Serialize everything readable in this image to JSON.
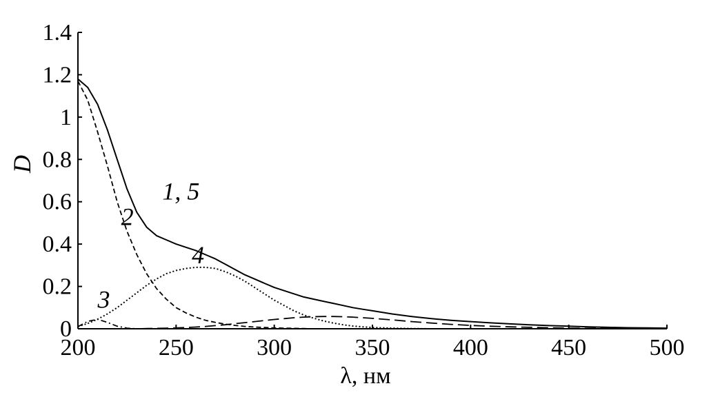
{
  "chart_data": {
    "type": "line",
    "title": "",
    "xlabel": "λ, нм",
    "ylabel": "D",
    "xlim": [
      200,
      500
    ],
    "ylim": [
      0,
      1.4
    ],
    "xticks": [
      200,
      250,
      300,
      350,
      400,
      450,
      500
    ],
    "yticks": [
      0,
      0.2,
      0.4,
      0.6,
      0.8,
      1,
      1.2,
      1.4
    ],
    "xtick_labels": [
      "200",
      "250",
      "300",
      "350",
      "400",
      "450",
      "500"
    ],
    "ytick_labels": [
      "0",
      "0.2",
      "0.4",
      "0.6",
      "0.8",
      "1",
      "1.2",
      "1.4"
    ],
    "grid": false,
    "legend": "none",
    "x": [
      200,
      205,
      210,
      215,
      220,
      225,
      230,
      235,
      240,
      245,
      250,
      255,
      260,
      265,
      270,
      275,
      280,
      285,
      290,
      295,
      300,
      305,
      310,
      315,
      320,
      325,
      330,
      335,
      340,
      345,
      350,
      360,
      370,
      380,
      390,
      400,
      410,
      420,
      430,
      440,
      450,
      460,
      470,
      480,
      490,
      500
    ],
    "series": [
      {
        "name": "1",
        "style": "solid",
        "values": [
          1.18,
          1.14,
          1.06,
          0.94,
          0.8,
          0.66,
          0.55,
          0.48,
          0.44,
          0.42,
          0.4,
          0.385,
          0.37,
          0.35,
          0.33,
          0.305,
          0.28,
          0.255,
          0.235,
          0.215,
          0.195,
          0.18,
          0.165,
          0.15,
          0.14,
          0.13,
          0.12,
          0.11,
          0.1,
          0.092,
          0.085,
          0.07,
          0.058,
          0.048,
          0.04,
          0.034,
          0.028,
          0.023,
          0.019,
          0.015,
          0.012,
          0.009,
          0.007,
          0.005,
          0.004,
          0.003
        ]
      },
      {
        "name": "2",
        "style": "dashed",
        "values": [
          1.17,
          1.08,
          0.93,
          0.77,
          0.6,
          0.46,
          0.35,
          0.26,
          0.19,
          0.14,
          0.1,
          0.075,
          0.055,
          0.04,
          0.03,
          0.022,
          0.016,
          0.011,
          0.008,
          0.006,
          0.004,
          0.003,
          0.002,
          0.001,
          0,
          0,
          0,
          0,
          0,
          0,
          0,
          0,
          0,
          0,
          0,
          0,
          0,
          0,
          0,
          0,
          0,
          0,
          0,
          0,
          0,
          0
        ]
      },
      {
        "name": "3",
        "style": "dash-dot",
        "values": [
          0.01,
          0.035,
          0.045,
          0.03,
          0.012,
          0.003,
          0,
          0,
          0,
          0,
          0,
          0,
          0,
          0,
          0,
          0,
          0,
          0,
          0,
          0,
          0,
          0,
          0,
          0,
          0,
          0,
          0,
          0,
          0,
          0,
          0,
          0,
          0,
          0,
          0,
          0,
          0,
          0,
          0,
          0,
          0,
          0,
          0,
          0,
          0,
          0
        ]
      },
      {
        "name": "4",
        "style": "dotted",
        "values": [
          0.01,
          0.025,
          0.045,
          0.07,
          0.1,
          0.135,
          0.17,
          0.205,
          0.235,
          0.26,
          0.275,
          0.285,
          0.29,
          0.29,
          0.285,
          0.27,
          0.25,
          0.225,
          0.195,
          0.165,
          0.135,
          0.11,
          0.085,
          0.065,
          0.05,
          0.037,
          0.027,
          0.019,
          0.013,
          0.009,
          0.006,
          0.003,
          0.001,
          0,
          0,
          0,
          0,
          0,
          0,
          0,
          0,
          0,
          0,
          0,
          0,
          0
        ]
      },
      {
        "name": "5",
        "style": "long-dashed",
        "values": [
          0,
          0,
          0,
          0,
          0,
          0,
          0,
          0.001,
          0.002,
          0.003,
          0.004,
          0.006,
          0.008,
          0.011,
          0.015,
          0.019,
          0.024,
          0.029,
          0.034,
          0.039,
          0.044,
          0.048,
          0.052,
          0.055,
          0.057,
          0.058,
          0.058,
          0.057,
          0.055,
          0.052,
          0.049,
          0.042,
          0.034,
          0.027,
          0.021,
          0.016,
          0.012,
          0.009,
          0.007,
          0.005,
          0.003,
          0.002,
          0.002,
          0.001,
          0.001,
          0
        ]
      }
    ],
    "annotations": [
      {
        "text": "1, 5",
        "x": 243,
        "y": 0.61
      },
      {
        "text": "2",
        "x": 222,
        "y": 0.49
      },
      {
        "text": "3",
        "x": 210,
        "y": 0.1
      },
      {
        "text": "4",
        "x": 258,
        "y": 0.31
      }
    ]
  }
}
